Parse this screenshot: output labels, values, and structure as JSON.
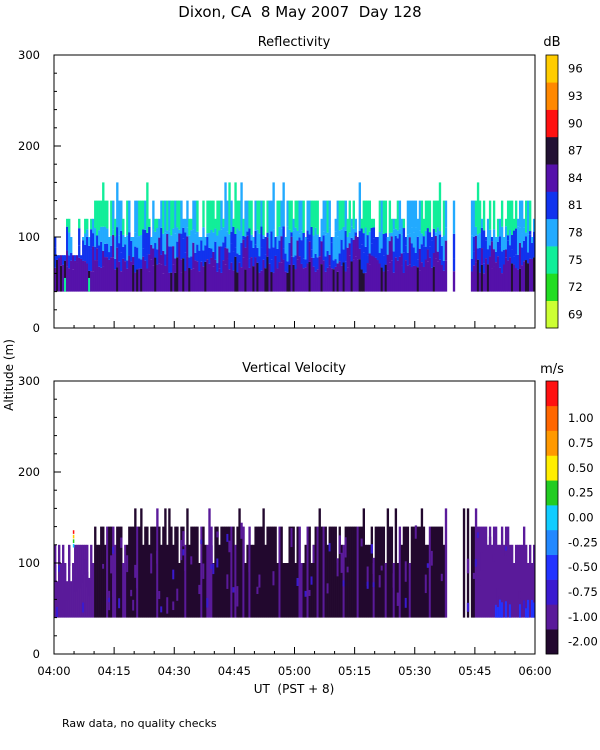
{
  "page_title": "Dixon, CA  8 May 2007  Day 128",
  "y_axis_label": "Altitude (m)",
  "x_axis_label": "UT  (PST + 8)",
  "footnote": "Raw data, no quality checks",
  "chart_data": [
    {
      "type": "heatmap",
      "title": "Reflectivity",
      "units": "dB",
      "ylabel": "Altitude (m)",
      "xlabel": "UT  (PST + 8)",
      "ylim": [
        0,
        300
      ],
      "y_ticks": [
        "0",
        "100",
        "200",
        "300"
      ],
      "x_range_hours": [
        4.0,
        6.0
      ],
      "x_ticks": [
        "04:00",
        "04:15",
        "04:30",
        "04:45",
        "05:00",
        "05:15",
        "05:30",
        "05:45",
        "06:00"
      ],
      "colorbar_labels": [
        "69",
        "72",
        "75",
        "78",
        "81",
        "84",
        "87",
        "90",
        "93",
        "96"
      ],
      "colorbar_colors": [
        "#ccff33",
        "#22dd22",
        "#11ee99",
        "#22aaff",
        "#1133ee",
        "#5511aa",
        "#221133",
        "#ff1111",
        "#ff8800",
        "#ffcc00"
      ],
      "data_bottom_m": 40,
      "echo_top_m_typical": 140,
      "echo_top_m_peak": 160,
      "data_gap_ut": [
        "05:38",
        "05:44"
      ],
      "layers": [
        {
          "from_m": 40,
          "to_m": 60,
          "dB": 84
        },
        {
          "from_m": 60,
          "to_m": 85,
          "dB": 82
        },
        {
          "from_m": 85,
          "to_m": 100,
          "dB": 80
        },
        {
          "from_m": 100,
          "to_m": 118,
          "dB": 78
        },
        {
          "from_m": 118,
          "to_m": 140,
          "dB": 75
        }
      ]
    },
    {
      "type": "heatmap",
      "title": "Vertical Velocity",
      "units": "m/s",
      "ylabel": "Altitude (m)",
      "xlabel": "UT  (PST + 8)",
      "ylim": [
        0,
        300
      ],
      "y_ticks": [
        "0",
        "100",
        "200",
        "300"
      ],
      "x_range_hours": [
        4.0,
        6.0
      ],
      "x_ticks": [
        "04:00",
        "04:15",
        "04:30",
        "04:45",
        "05:00",
        "05:15",
        "05:30",
        "05:45",
        "06:00"
      ],
      "colorbar_labels": [
        "-2.00",
        "-1.00",
        "-0.75",
        "-0.50",
        "-0.25",
        "0.00",
        "0.25",
        "0.50",
        "0.75",
        "1.00"
      ],
      "colorbar_colors": [
        "#22082e",
        "#5a1a9a",
        "#3a1ad0",
        "#2233ff",
        "#2288ff",
        "#11ccff",
        "#22cc22",
        "#ffee00",
        "#ff9900",
        "#ff6600",
        "#ff1111"
      ],
      "data_bottom_m": 40,
      "echo_top_m_typical": 140,
      "echo_top_m_peak": 160,
      "data_gap_ut": [
        "05:38",
        "05:44"
      ],
      "dominant_velocity_ms": -2.0
    }
  ]
}
